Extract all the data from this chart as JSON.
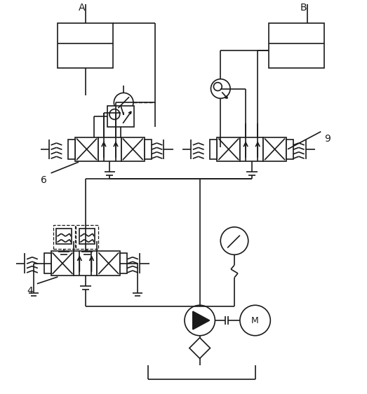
{
  "bg": "#ffffff",
  "lc": "#1a1a1a",
  "lw": 1.2,
  "figsize": [
    5.23,
    5.62
  ],
  "dpi": 100,
  "xlim": [
    0,
    52.3
  ],
  "ylim": [
    0,
    56.2
  ]
}
